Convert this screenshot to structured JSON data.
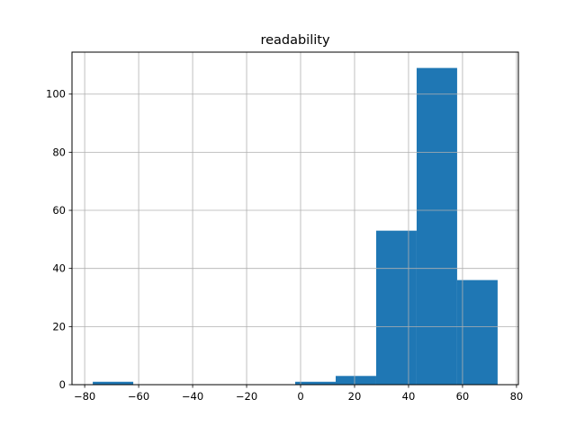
{
  "chart_data": {
    "type": "bar",
    "title": "readability",
    "xlabel": "",
    "ylabel": "",
    "bin_edges": [
      -77,
      -62,
      -47,
      -32,
      -17,
      -2,
      13,
      28,
      43,
      58,
      73
    ],
    "values": [
      1,
      0,
      0,
      0,
      0,
      1,
      3,
      53,
      109,
      36
    ],
    "xlim": [
      -84.7,
      80.7
    ],
    "ylim": [
      0,
      114.45
    ],
    "xticks": [
      -80,
      -60,
      -40,
      -20,
      0,
      20,
      40,
      60,
      80
    ],
    "yticks": [
      0,
      20,
      40,
      60,
      80,
      100
    ],
    "grid": true,
    "bar_color": "#1f77b4",
    "grid_color": "#b0b0b0"
  }
}
